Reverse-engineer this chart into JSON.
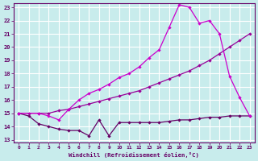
{
  "bg_color": "#c8ecec",
  "grid_color": "#ffffff",
  "line_color_flat": "#660066",
  "line_color_diag": "#990099",
  "line_color_peak": "#cc00cc",
  "xlabel": "Windchill (Refroidissement éolien,°C)",
  "xlim": [
    0,
    23
  ],
  "ylim": [
    13,
    23
  ],
  "yticks": [
    13,
    14,
    15,
    16,
    17,
    18,
    19,
    20,
    21,
    22,
    23
  ],
  "xticks": [
    0,
    1,
    2,
    3,
    4,
    5,
    6,
    7,
    8,
    9,
    10,
    11,
    12,
    13,
    14,
    15,
    16,
    17,
    18,
    19,
    20,
    21,
    22,
    23
  ],
  "flat_x": [
    0,
    1,
    2,
    3,
    4,
    5,
    6,
    7,
    8,
    9,
    10,
    11,
    12,
    13,
    14,
    15,
    16,
    17,
    18,
    19,
    20,
    21,
    22,
    23
  ],
  "flat_y": [
    15.0,
    14.8,
    14.2,
    14.0,
    13.8,
    13.7,
    13.7,
    13.3,
    14.5,
    13.3,
    14.3,
    14.3,
    14.3,
    14.3,
    14.3,
    14.4,
    14.5,
    14.5,
    14.6,
    14.7,
    14.7,
    14.8,
    14.8,
    14.8
  ],
  "diag_x": [
    0,
    1,
    2,
    3,
    4,
    5,
    6,
    7,
    8,
    9,
    10,
    11,
    12,
    13,
    14,
    15,
    16,
    17,
    18,
    19,
    20,
    21,
    22,
    23
  ],
  "diag_y": [
    15.0,
    15.0,
    15.0,
    15.0,
    15.2,
    15.3,
    15.5,
    15.7,
    15.9,
    16.1,
    16.3,
    16.5,
    16.7,
    17.0,
    17.3,
    17.6,
    17.9,
    18.2,
    18.6,
    19.0,
    19.5,
    20.0,
    20.5,
    21.0
  ],
  "peak_x": [
    0,
    2,
    3,
    4,
    5,
    6,
    7,
    8,
    9,
    10,
    11,
    12,
    13,
    14,
    15,
    16,
    17,
    18,
    19,
    20,
    21,
    22,
    23
  ],
  "peak_y": [
    15.0,
    15.0,
    14.8,
    14.5,
    15.3,
    16.0,
    16.5,
    16.8,
    17.2,
    17.7,
    18.0,
    18.5,
    19.2,
    19.8,
    21.5,
    23.2,
    23.0,
    21.8,
    22.0,
    21.0,
    17.8,
    16.2,
    14.8
  ]
}
